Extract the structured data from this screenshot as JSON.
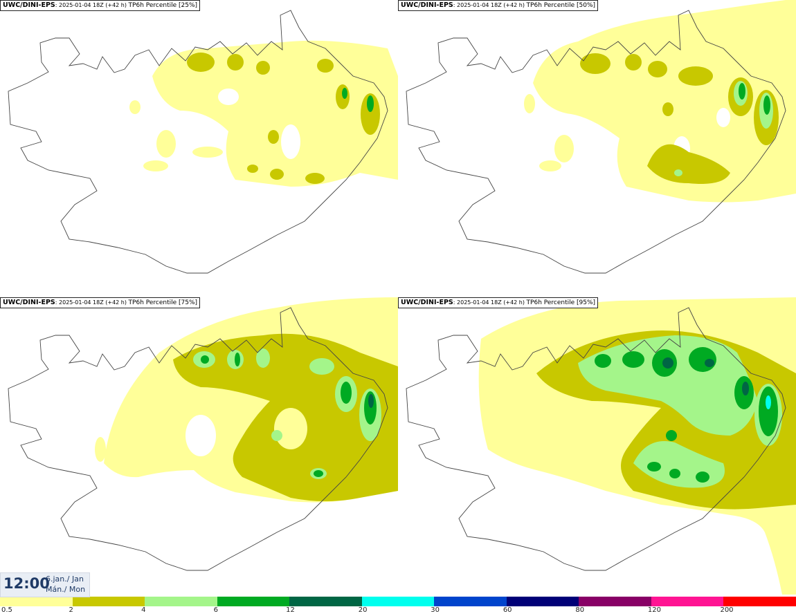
{
  "model": "UWC/DINI-EPS",
  "run_info": ": 2025-01-04 18Z (+42 h) ",
  "panels": [
    {
      "title": "TP6h Percentile [25%]"
    },
    {
      "title": "TP6h Percentile [50%]"
    },
    {
      "title": "TP6h Percentile [75%]"
    },
    {
      "title": "TP6h Percentile [95%]"
    }
  ],
  "valid_time": {
    "clock": "12:00",
    "line1": "6.jan./ Jan",
    "line2": "Mán./ Mon"
  },
  "legend": {
    "ticks": [
      "0.5",
      "2",
      "4",
      "6",
      "12",
      "20",
      "30",
      "60",
      "80",
      "120",
      "200"
    ],
    "colors": [
      "#ffff99",
      "#c8c800",
      "#a4f58a",
      "#00aa22",
      "#006644",
      "#00ffee",
      "#0044cc",
      "#000077",
      "#880066",
      "#ff1493",
      "#ff0000"
    ]
  },
  "colors": {
    "coast": "#444444",
    "level_0_5": "#ffff99",
    "level_2": "#c8c800",
    "level_4": "#a4f58a",
    "level_6": "#00aa22",
    "level_12": "#006644",
    "level_20": "#00ffee"
  }
}
